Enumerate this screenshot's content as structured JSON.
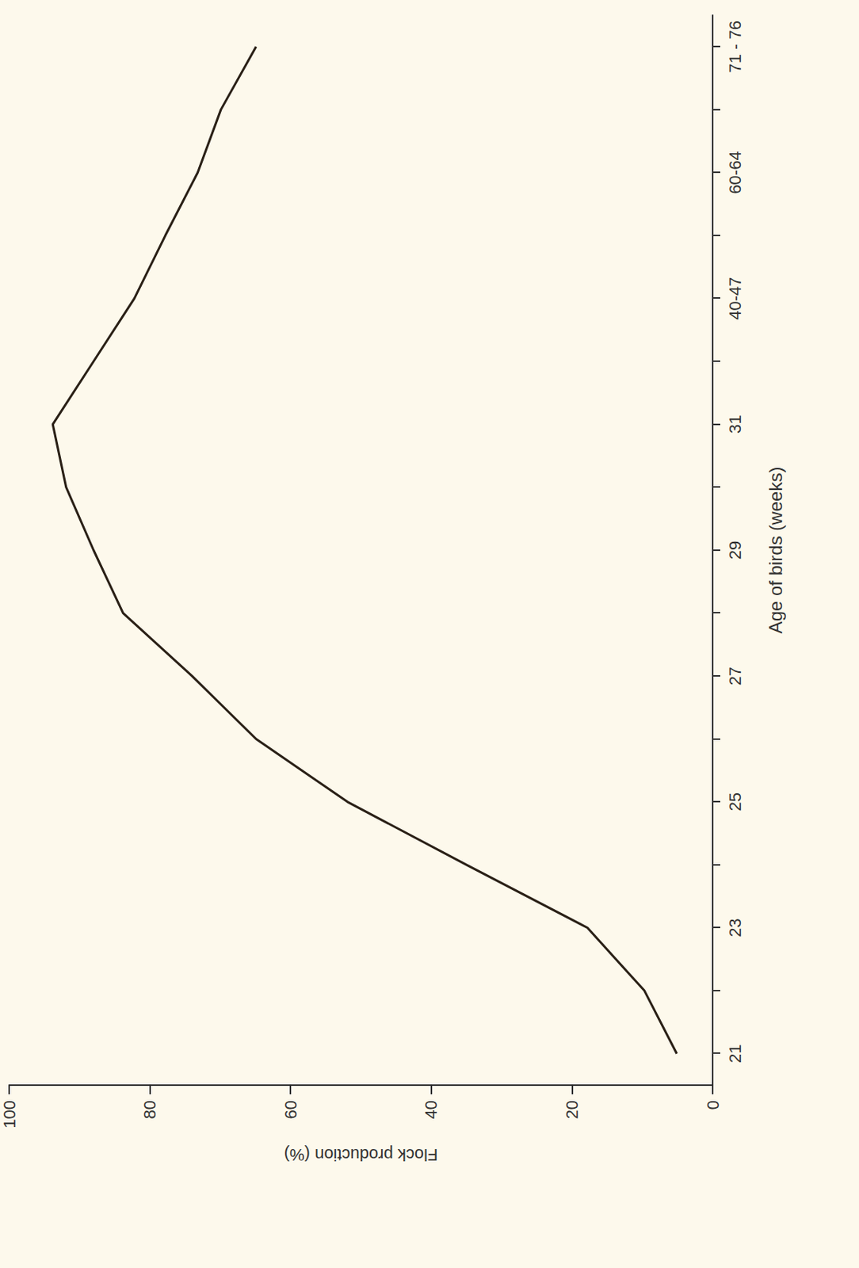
{
  "chart_data": {
    "type": "line",
    "x_label": "Age of birds (weeks)",
    "y_label": "Flock production (%)",
    "categories": [
      "21",
      null,
      "23",
      null,
      "25",
      null,
      "27",
      null,
      "29",
      null,
      "31",
      null,
      "40-47",
      null,
      "60-64",
      null,
      "71 - 76"
    ],
    "values": [
      5.1,
      9.7,
      17.8,
      35,
      51.9,
      64.9,
      74,
      83.8,
      88,
      91.9,
      93.8,
      88,
      82.2,
      77.8,
      73.2,
      69.9,
      64.9
    ],
    "color": "#2a2016",
    "ylim": [
      0,
      100
    ],
    "yticks": [
      0,
      20,
      40,
      60,
      80,
      100
    ],
    "grid": false
  }
}
